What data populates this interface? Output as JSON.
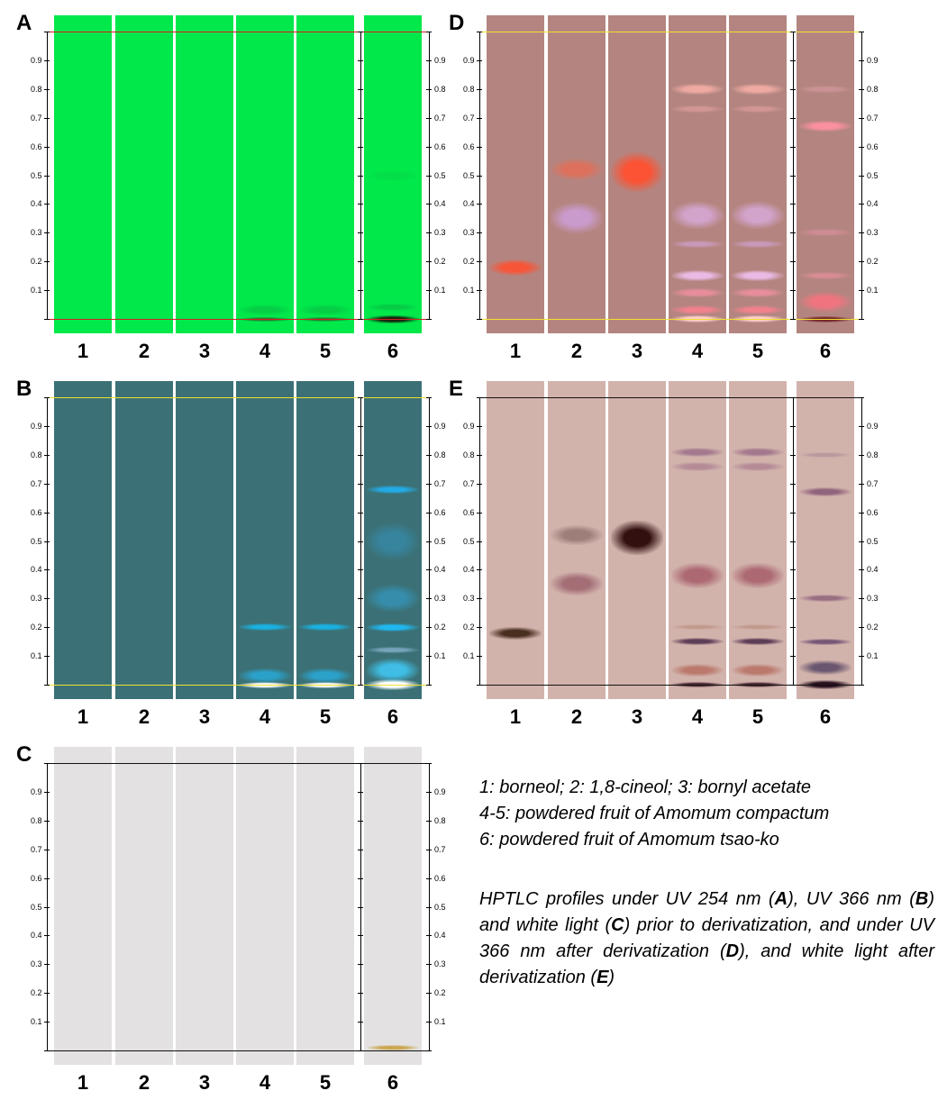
{
  "rf_ticks": [
    "0.1",
    "0.2",
    "0.3",
    "0.4",
    "0.5",
    "0.6",
    "0.7",
    "0.8",
    "0.9"
  ],
  "panels": [
    {
      "letter": "A",
      "lane_labels": [
        "1",
        "2",
        "3",
        "4",
        "5",
        "6"
      ],
      "background": "#00e84a",
      "line_color": "#d32020"
    },
    {
      "letter": "B",
      "lane_labels": [
        "1",
        "2",
        "3",
        "4",
        "5",
        "6"
      ],
      "background": "#3b7176",
      "line_color": "#f0e030"
    },
    {
      "letter": "C",
      "lane_labels": [
        "1",
        "2",
        "3",
        "4",
        "5",
        "6"
      ],
      "background": "#e3e1e1",
      "line_color": "#111111"
    },
    {
      "letter": "D",
      "lane_labels": [
        "1",
        "2",
        "3",
        "4",
        "5",
        "6"
      ],
      "background": "#b48580",
      "line_color": "#f0e030"
    },
    {
      "letter": "E",
      "lane_labels": [
        "1",
        "2",
        "3",
        "4",
        "5",
        "6"
      ],
      "background": "#d2b3ac",
      "line_color": "#111111"
    }
  ],
  "legend": {
    "line1": "1: borneol; 2: 1,8-cineol; 3: bornyl acetate",
    "line2": "4-5: powdered fruit of Amomum compactum",
    "line3": "6: powdered fruit of Amomum tsao-ko"
  },
  "description": {
    "p1": "HPTLC profiles under UV 254 nm (",
    "A": "A",
    "p2": "), UV 366 nm (",
    "B": "B",
    "p3": ") and white light (",
    "C": "C",
    "p4": ") prior to derivatization, and under UV 366 nm after derivatization (",
    "D": "D",
    "p5": "), and white light after derivatization (",
    "E": "E",
    "p6": ")"
  },
  "bands": {
    "A": [
      [],
      [],
      [],
      [
        {
          "rf": 0.0,
          "color": "#3a5a2a",
          "w": 5,
          "o": 0.8
        },
        {
          "rf": 0.03,
          "color": "#10a040",
          "w": 12,
          "o": 0.35
        }
      ],
      [
        {
          "rf": 0.0,
          "color": "#3a5a2a",
          "w": 5,
          "o": 0.8
        },
        {
          "rf": 0.03,
          "color": "#10a040",
          "w": 12,
          "o": 0.35
        }
      ],
      [
        {
          "rf": 0.0,
          "color": "#1a1a0a",
          "w": 9,
          "o": 0.95
        },
        {
          "rf": 0.04,
          "color": "#10a040",
          "w": 8,
          "o": 0.4
        },
        {
          "rf": 0.5,
          "color": "#10c040",
          "w": 12,
          "o": 0.25
        }
      ]
    ],
    "B": [
      [],
      [],
      [],
      [
        {
          "rf": 0.0,
          "color": "#ffffff",
          "w": 7,
          "o": 1
        },
        {
          "rf": 0.03,
          "color": "#20c0ff",
          "w": 16,
          "o": 0.6
        },
        {
          "rf": 0.2,
          "color": "#1ab0e0",
          "w": 8,
          "o": 1
        }
      ],
      [
        {
          "rf": 0.0,
          "color": "#ffffff",
          "w": 7,
          "o": 1
        },
        {
          "rf": 0.03,
          "color": "#20c0ff",
          "w": 16,
          "o": 0.6
        },
        {
          "rf": 0.2,
          "color": "#1ab0e0",
          "w": 8,
          "o": 1
        }
      ],
      [
        {
          "rf": 0.0,
          "color": "#ffffff",
          "w": 12,
          "o": 1
        },
        {
          "rf": 0.05,
          "color": "#40d0ff",
          "w": 26,
          "o": 0.8
        },
        {
          "rf": 0.12,
          "color": "#8fb8d8",
          "w": 7,
          "o": 0.7
        },
        {
          "rf": 0.2,
          "color": "#20b8f0",
          "w": 9,
          "o": 1
        },
        {
          "rf": 0.3,
          "color": "#30a8e0",
          "w": 30,
          "o": 0.5
        },
        {
          "rf": 0.5,
          "color": "#30a0d8",
          "w": 40,
          "o": 0.4
        },
        {
          "rf": 0.68,
          "color": "#20b0f0",
          "w": 9,
          "o": 0.9
        }
      ]
    ],
    "C": [
      [],
      [],
      [],
      [],
      [],
      [
        {
          "rf": 0.01,
          "color": "#c8a040",
          "w": 6,
          "o": 0.9
        }
      ]
    ],
    "D": [
      [
        {
          "rf": 0.18,
          "color": "#ff5030",
          "w": 18,
          "o": 0.9
        }
      ],
      [
        {
          "rf": 0.35,
          "color": "#d0a0e0",
          "w": 34,
          "o": 0.8
        },
        {
          "rf": 0.52,
          "color": "#ff6040",
          "w": 24,
          "o": 0.55
        }
      ],
      [
        {
          "rf": 0.51,
          "color": "#ff5030",
          "w": 44,
          "o": 0.95
        }
      ],
      [
        {
          "rf": 0.0,
          "color": "#ffd0c8",
          "w": 8,
          "o": 1
        },
        {
          "rf": 0.03,
          "color": "#ff8090",
          "w": 10,
          "o": 0.8
        },
        {
          "rf": 0.09,
          "color": "#ff90a8",
          "w": 10,
          "o": 0.7
        },
        {
          "rf": 0.15,
          "color": "#f0c0f0",
          "w": 12,
          "o": 0.9
        },
        {
          "rf": 0.26,
          "color": "#d0a0d0",
          "w": 8,
          "o": 0.7
        },
        {
          "rf": 0.36,
          "color": "#d8a8d8",
          "w": 30,
          "o": 0.85
        },
        {
          "rf": 0.73,
          "color": "#f0a8a8",
          "w": 8,
          "o": 0.5
        },
        {
          "rf": 0.8,
          "color": "#f8b0a8",
          "w": 12,
          "o": 0.85
        }
      ],
      [
        {
          "rf": 0.0,
          "color": "#ffd0c8",
          "w": 8,
          "o": 1
        },
        {
          "rf": 0.03,
          "color": "#ff8090",
          "w": 10,
          "o": 0.8
        },
        {
          "rf": 0.09,
          "color": "#ff90a8",
          "w": 10,
          "o": 0.7
        },
        {
          "rf": 0.15,
          "color": "#f0c0f0",
          "w": 12,
          "o": 0.9
        },
        {
          "rf": 0.26,
          "color": "#d0a0d0",
          "w": 8,
          "o": 0.7
        },
        {
          "rf": 0.36,
          "color": "#d8a8d8",
          "w": 30,
          "o": 0.85
        },
        {
          "rf": 0.73,
          "color": "#f0a8a8",
          "w": 8,
          "o": 0.5
        },
        {
          "rf": 0.8,
          "color": "#f8b0a8",
          "w": 12,
          "o": 0.85
        }
      ],
      [
        {
          "rf": 0.0,
          "color": "#702020",
          "w": 7,
          "o": 0.95
        },
        {
          "rf": 0.06,
          "color": "#ff7080",
          "w": 22,
          "o": 0.8
        },
        {
          "rf": 0.15,
          "color": "#f090a0",
          "w": 8,
          "o": 0.6
        },
        {
          "rf": 0.3,
          "color": "#e090a0",
          "w": 8,
          "o": 0.6
        },
        {
          "rf": 0.67,
          "color": "#ff90a0",
          "w": 12,
          "o": 0.95
        },
        {
          "rf": 0.8,
          "color": "#e0a0a8",
          "w": 8,
          "o": 0.5
        }
      ]
    ],
    "E": [
      [
        {
          "rf": 0.18,
          "color": "#3a2010",
          "w": 14,
          "o": 0.9
        }
      ],
      [
        {
          "rf": 0.35,
          "color": "#905060",
          "w": 26,
          "o": 0.7
        },
        {
          "rf": 0.52,
          "color": "#503030",
          "w": 22,
          "o": 0.4
        }
      ],
      [
        {
          "rf": 0.51,
          "color": "#2a0808",
          "w": 38,
          "o": 0.95
        }
      ],
      [
        {
          "rf": 0.0,
          "color": "#401828",
          "w": 6,
          "o": 0.9
        },
        {
          "rf": 0.05,
          "color": "#b06050",
          "w": 14,
          "o": 0.7
        },
        {
          "rf": 0.15,
          "color": "#4a2848",
          "w": 8,
          "o": 0.85
        },
        {
          "rf": 0.2,
          "color": "#b08070",
          "w": 6,
          "o": 0.5
        },
        {
          "rf": 0.38,
          "color": "#a05060",
          "w": 28,
          "o": 0.75
        },
        {
          "rf": 0.76,
          "color": "#a07088",
          "w": 10,
          "o": 0.6
        },
        {
          "rf": 0.81,
          "color": "#906080",
          "w": 10,
          "o": 0.7
        }
      ],
      [
        {
          "rf": 0.0,
          "color": "#401828",
          "w": 6,
          "o": 0.9
        },
        {
          "rf": 0.05,
          "color": "#b06050",
          "w": 14,
          "o": 0.7
        },
        {
          "rf": 0.15,
          "color": "#4a2848",
          "w": 8,
          "o": 0.85
        },
        {
          "rf": 0.2,
          "color": "#b08070",
          "w": 6,
          "o": 0.5
        },
        {
          "rf": 0.38,
          "color": "#a05060",
          "w": 28,
          "o": 0.75
        },
        {
          "rf": 0.76,
          "color": "#a07088",
          "w": 10,
          "o": 0.6
        },
        {
          "rf": 0.81,
          "color": "#906080",
          "w": 10,
          "o": 0.7
        }
      ],
      [
        {
          "rf": 0.0,
          "color": "#200818",
          "w": 10,
          "o": 0.95
        },
        {
          "rf": 0.06,
          "color": "#504060",
          "w": 16,
          "o": 0.8
        },
        {
          "rf": 0.15,
          "color": "#503060",
          "w": 7,
          "o": 0.7
        },
        {
          "rf": 0.3,
          "color": "#805070",
          "w": 8,
          "o": 0.7
        },
        {
          "rf": 0.67,
          "color": "#805070",
          "w": 10,
          "o": 0.8
        },
        {
          "rf": 0.8,
          "color": "#a08090",
          "w": 6,
          "o": 0.5
        }
      ]
    ]
  }
}
